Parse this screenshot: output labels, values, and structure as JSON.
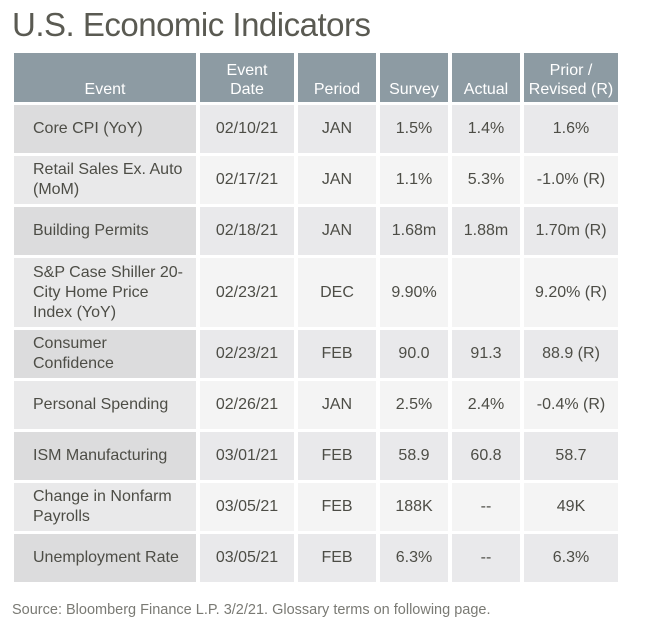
{
  "title": "U.S. Economic Indicators",
  "table": {
    "headers": {
      "event": "Event",
      "event_date_line1": "Event",
      "event_date_line2": "Date",
      "period": "Period",
      "survey": "Survey",
      "actual": "Actual",
      "prior_line1": "Prior /",
      "prior_line2": "Revised (R)"
    },
    "rows": [
      {
        "event": "Core CPI (YoY)",
        "date": "02/10/21",
        "period": "JAN",
        "survey": "1.5%",
        "actual": "1.4%",
        "prior": "1.6%"
      },
      {
        "event": "Retail Sales Ex. Auto (MoM)",
        "date": "02/17/21",
        "period": "JAN",
        "survey": "1.1%",
        "actual": "5.3%",
        "prior": "-1.0% (R)"
      },
      {
        "event": "Building Permits",
        "date": "02/18/21",
        "period": "JAN",
        "survey": "1.68m",
        "actual": "1.88m",
        "prior": "1.70m (R)"
      },
      {
        "event": "S&P Case Shiller 20-City Home Price Index (YoY)",
        "date": "02/23/21",
        "period": "DEC",
        "survey": "9.90%",
        "actual": "",
        "prior": "9.20% (R)"
      },
      {
        "event": "Consumer Confidence",
        "date": "02/23/21",
        "period": "FEB",
        "survey": "90.0",
        "actual": "91.3",
        "prior": "88.9 (R)"
      },
      {
        "event": "Personal Spending",
        "date": "02/26/21",
        "period": "JAN",
        "survey": "2.5%",
        "actual": "2.4%",
        "prior": "-0.4% (R)"
      },
      {
        "event": "ISM Manufacturing",
        "date": "03/01/21",
        "period": "FEB",
        "survey": "58.9",
        "actual": "60.8",
        "prior": "58.7"
      },
      {
        "event": "Change in Nonfarm Payrolls",
        "date": "03/05/21",
        "period": "FEB",
        "survey": "188K",
        "actual": "--",
        "prior": "49K"
      },
      {
        "event": "Unemployment Rate",
        "date": "03/05/21",
        "period": "FEB",
        "survey": "6.3%",
        "actual": "--",
        "prior": "6.3%"
      }
    ]
  },
  "source": "Source: Bloomberg Finance L.P. 3/2/21. Glossary terms on following page.",
  "colors": {
    "header_bg": "#8d9ba3",
    "header_text": "#ffffff",
    "row_odd_bg": "#e9e9eb",
    "row_odd_event_bg": "#dcdcdd",
    "row_even_bg": "#f4f4f4",
    "row_even_event_bg": "#e9e9ea",
    "text": "#4d4d46"
  }
}
